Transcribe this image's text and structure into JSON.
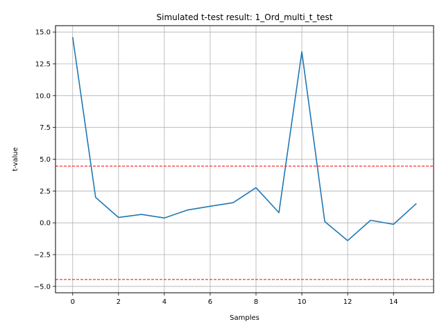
{
  "chart_data": {
    "type": "line",
    "title": "Simulated t-test result: 1_Ord_multi_t_test",
    "xlabel": "Samples",
    "ylabel": "t-value",
    "xlim": [
      -0.75,
      15.75
    ],
    "ylim": [
      -5.5,
      15.5
    ],
    "xticks": [
      0,
      2,
      4,
      6,
      8,
      10,
      12,
      14
    ],
    "yticks": [
      -5.0,
      -2.5,
      0.0,
      2.5,
      5.0,
      7.5,
      10.0,
      12.5,
      15.0
    ],
    "ytick_labels": [
      "−5.0",
      "−2.5",
      "0.0",
      "2.5",
      "5.0",
      "7.5",
      "10.0",
      "12.5",
      "15.0"
    ],
    "grid": true,
    "series": [
      {
        "color": "#1f77b4",
        "x": [
          0,
          1,
          2,
          3,
          4,
          5,
          6,
          7,
          8,
          9,
          10,
          11,
          12,
          13,
          14,
          15
        ],
        "y": [
          14.6,
          2.0,
          0.42,
          0.66,
          0.38,
          1.0,
          1.3,
          1.58,
          2.76,
          0.8,
          13.45,
          0.1,
          -1.4,
          0.2,
          -0.12,
          1.52
        ]
      }
    ],
    "thresholds": [
      {
        "y": 4.46,
        "color": "#ff0000",
        "style": "dashed"
      },
      {
        "y": -4.46,
        "color": "#ff0000",
        "style": "dashed"
      }
    ]
  }
}
